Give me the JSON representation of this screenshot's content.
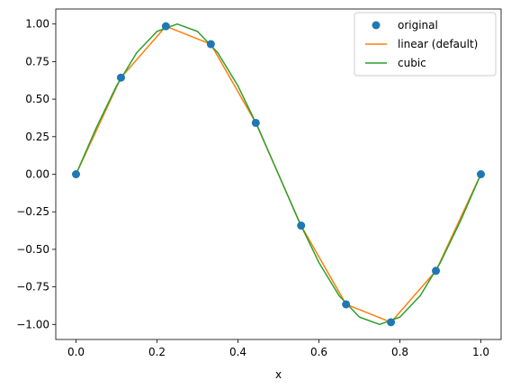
{
  "chart_data": {
    "type": "line",
    "title": "",
    "xlabel": "x",
    "ylabel": "",
    "xlim": [
      -0.05,
      1.05
    ],
    "ylim": [
      -1.1,
      1.1
    ],
    "xticks": [
      0.0,
      0.2,
      0.4,
      0.6,
      0.8,
      1.0
    ],
    "xtick_labels": [
      "0.0",
      "0.2",
      "0.4",
      "0.6",
      "0.8",
      "1.0"
    ],
    "yticks": [
      1.0,
      0.75,
      0.5,
      0.25,
      0.0,
      -0.25,
      -0.5,
      -0.75,
      -1.0
    ],
    "ytick_labels": [
      "1.00",
      "0.75",
      "0.50",
      "0.25",
      "0.00",
      "−0.25",
      "−0.50",
      "−0.75",
      "−1.00"
    ],
    "grid": false,
    "legend_position": "top-right",
    "series": [
      {
        "name": "original",
        "kind": "markers",
        "color": "#1f77b4",
        "x": [
          0.0,
          0.111,
          0.222,
          0.333,
          0.444,
          0.556,
          0.667,
          0.778,
          0.889,
          1.0
        ],
        "y": [
          0.0,
          0.643,
          0.985,
          0.866,
          0.342,
          -0.342,
          -0.866,
          -0.985,
          -0.643,
          0.0
        ]
      },
      {
        "name": "linear (default)",
        "kind": "line",
        "color": "#ff7f0e",
        "x": [
          0.0,
          0.111,
          0.222,
          0.333,
          0.444,
          0.556,
          0.667,
          0.778,
          0.889,
          1.0
        ],
        "y": [
          0.0,
          0.643,
          0.985,
          0.866,
          0.342,
          -0.342,
          -0.866,
          -0.985,
          -0.643,
          0.0
        ]
      },
      {
        "name": "cubic",
        "kind": "line",
        "color": "#2ca02c",
        "x": [
          0.0,
          0.05,
          0.1,
          0.15,
          0.2,
          0.25,
          0.3,
          0.35,
          0.4,
          0.45,
          0.5,
          0.55,
          0.6,
          0.65,
          0.7,
          0.75,
          0.8,
          0.85,
          0.9,
          0.95,
          1.0
        ],
        "y": [
          0.0,
          0.309,
          0.588,
          0.809,
          0.951,
          1.0,
          0.951,
          0.809,
          0.588,
          0.309,
          0.0,
          -0.309,
          -0.588,
          -0.809,
          -0.951,
          -1.0,
          -0.951,
          -0.809,
          -0.588,
          -0.309,
          0.0
        ]
      }
    ]
  }
}
